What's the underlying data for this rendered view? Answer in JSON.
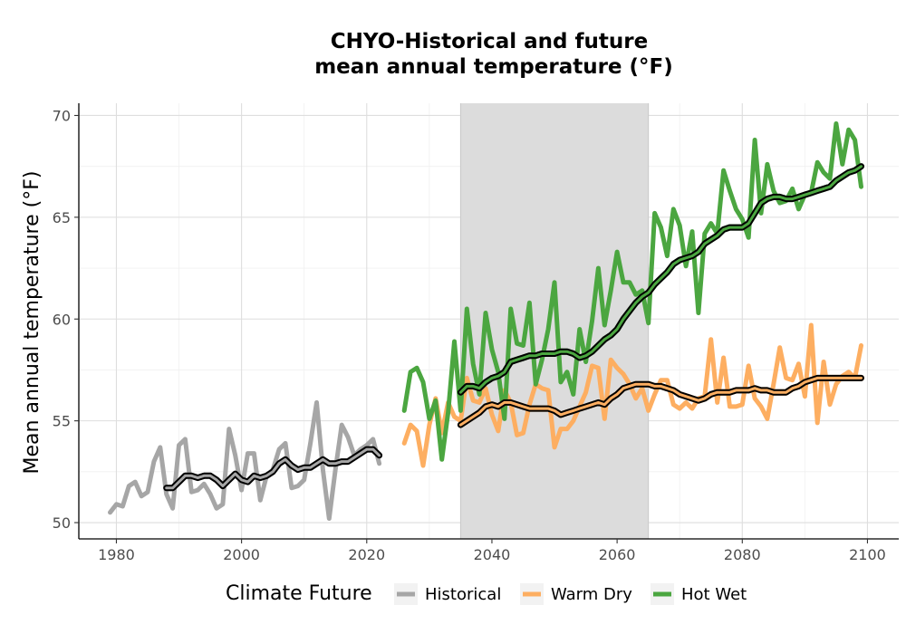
{
  "chart_data": {
    "type": "line",
    "title_lines": [
      "CHYO-Historical and future",
      "mean annual temperature (°F)"
    ],
    "xlabel": "",
    "ylabel": "Mean annual temperature (°F)",
    "xlim": [
      1974,
      2105
    ],
    "ylim": [
      49.2,
      70.6
    ],
    "x_ticks": [
      1980,
      2000,
      2020,
      2040,
      2060,
      2080,
      2100
    ],
    "y_ticks": [
      50,
      55,
      60,
      65,
      70
    ],
    "grid": true,
    "shaded_period": [
      2035,
      2065
    ],
    "shade_color": "#dcdcdc",
    "legend": {
      "title": "Climate Future",
      "position": "bottom",
      "entries": [
        {
          "label": "Historical",
          "color": "#a6a6a6"
        },
        {
          "label": "Warm Dry",
          "color": "#fdae61"
        },
        {
          "label": "Hot Wet",
          "color": "#4ba640"
        }
      ]
    },
    "series": [
      {
        "name": "Historical",
        "color": "#a6a6a6",
        "x": [
          1979,
          1980,
          1981,
          1982,
          1983,
          1984,
          1985,
          1986,
          1987,
          1988,
          1989,
          1990,
          1991,
          1992,
          1993,
          1994,
          1995,
          1996,
          1997,
          1998,
          1999,
          2000,
          2001,
          2002,
          2003,
          2004,
          2005,
          2006,
          2007,
          2008,
          2009,
          2010,
          2011,
          2012,
          2013,
          2014,
          2015,
          2016,
          2017,
          2018,
          2019,
          2020,
          2021,
          2022
        ],
        "values": [
          50.5,
          50.9,
          50.8,
          51.8,
          52.0,
          51.3,
          51.5,
          53.0,
          53.7,
          51.4,
          50.7,
          53.8,
          54.1,
          51.5,
          51.6,
          51.9,
          51.4,
          50.7,
          50.9,
          54.6,
          53.3,
          51.6,
          53.4,
          53.4,
          51.1,
          52.3,
          52.6,
          53.6,
          53.9,
          51.7,
          51.8,
          52.1,
          53.9,
          55.9,
          52.6,
          50.2,
          52.6,
          54.8,
          54.2,
          53.3,
          53.6,
          53.8,
          54.1,
          52.9
        ]
      },
      {
        "name": "Historical smoothed",
        "color": "#000000",
        "x": [
          1988,
          1989,
          1990,
          1991,
          1992,
          1993,
          1994,
          1995,
          1996,
          1997,
          1998,
          1999,
          2000,
          2001,
          2002,
          2003,
          2004,
          2005,
          2006,
          2007,
          2008,
          2009,
          2010,
          2011,
          2012,
          2013,
          2014,
          2015,
          2016,
          2017,
          2018,
          2019,
          2020,
          2021,
          2022
        ],
        "values": [
          51.7,
          51.7,
          52.0,
          52.3,
          52.3,
          52.2,
          52.3,
          52.3,
          52.1,
          51.8,
          52.1,
          52.4,
          52.1,
          52.0,
          52.3,
          52.2,
          52.3,
          52.5,
          52.9,
          53.1,
          52.8,
          52.6,
          52.7,
          52.7,
          52.9,
          53.1,
          52.9,
          52.9,
          53.0,
          53.0,
          53.2,
          53.4,
          53.6,
          53.6,
          53.3
        ]
      },
      {
        "name": "Warm Dry",
        "color": "#fdae61",
        "x": [
          2026,
          2027,
          2028,
          2029,
          2030,
          2031,
          2032,
          2033,
          2034,
          2035,
          2036,
          2037,
          2038,
          2039,
          2040,
          2041,
          2042,
          2043,
          2044,
          2045,
          2046,
          2047,
          2048,
          2049,
          2050,
          2051,
          2052,
          2053,
          2054,
          2055,
          2056,
          2057,
          2058,
          2059,
          2060,
          2061,
          2062,
          2063,
          2064,
          2065,
          2066,
          2067,
          2068,
          2069,
          2070,
          2071,
          2072,
          2073,
          2074,
          2075,
          2076,
          2077,
          2078,
          2079,
          2080,
          2081,
          2082,
          2083,
          2084,
          2085,
          2086,
          2087,
          2088,
          2089,
          2090,
          2091,
          2092,
          2093,
          2094,
          2095,
          2096,
          2097,
          2098,
          2099
        ],
        "values": [
          53.9,
          54.8,
          54.5,
          52.8,
          54.8,
          56.1,
          54.4,
          55.9,
          55.2,
          55.0,
          57.1,
          56.0,
          55.9,
          56.6,
          55.3,
          54.5,
          56.5,
          55.9,
          54.3,
          54.4,
          55.8,
          56.8,
          56.6,
          56.5,
          53.7,
          54.6,
          54.6,
          55.0,
          55.7,
          56.4,
          57.7,
          57.6,
          55.1,
          58.0,
          57.6,
          57.3,
          56.8,
          56.1,
          56.6,
          55.5,
          56.3,
          57.0,
          57.0,
          55.8,
          55.6,
          55.9,
          55.6,
          56.1,
          56.2,
          59.0,
          55.9,
          58.1,
          55.7,
          55.7,
          55.8,
          57.7,
          56.1,
          55.7,
          55.1,
          56.8,
          58.6,
          57.1,
          57.0,
          57.8,
          56.2,
          59.7,
          54.9,
          57.9,
          55.8,
          56.8,
          57.2,
          57.4,
          57.1,
          58.7
        ]
      },
      {
        "name": "Warm Dry smoothed",
        "color": "#000000",
        "x": [
          2035,
          2036,
          2037,
          2038,
          2039,
          2040,
          2041,
          2042,
          2043,
          2044,
          2045,
          2046,
          2047,
          2048,
          2049,
          2050,
          2051,
          2052,
          2053,
          2054,
          2055,
          2056,
          2057,
          2058,
          2059,
          2060,
          2061,
          2062,
          2063,
          2064,
          2065,
          2066,
          2067,
          2068,
          2069,
          2070,
          2071,
          2072,
          2073,
          2074,
          2075,
          2076,
          2077,
          2078,
          2079,
          2080,
          2081,
          2082,
          2083,
          2084,
          2085,
          2086,
          2087,
          2088,
          2089,
          2090,
          2091,
          2092,
          2093,
          2094,
          2095,
          2096,
          2097,
          2098,
          2099
        ],
        "values": [
          54.8,
          55.0,
          55.2,
          55.4,
          55.7,
          55.8,
          55.7,
          55.9,
          55.9,
          55.8,
          55.7,
          55.6,
          55.6,
          55.6,
          55.6,
          55.5,
          55.3,
          55.4,
          55.5,
          55.6,
          55.7,
          55.8,
          55.9,
          55.8,
          56.1,
          56.3,
          56.6,
          56.7,
          56.8,
          56.8,
          56.8,
          56.7,
          56.7,
          56.6,
          56.5,
          56.3,
          56.2,
          56.1,
          56.0,
          56.1,
          56.3,
          56.4,
          56.4,
          56.4,
          56.5,
          56.5,
          56.5,
          56.6,
          56.5,
          56.5,
          56.4,
          56.4,
          56.4,
          56.6,
          56.7,
          56.9,
          57.0,
          57.1,
          57.1,
          57.1,
          57.1,
          57.1,
          57.1,
          57.1,
          57.1
        ]
      },
      {
        "name": "Hot Wet",
        "color": "#4ba640",
        "x": [
          2026,
          2027,
          2028,
          2029,
          2030,
          2031,
          2032,
          2033,
          2034,
          2035,
          2036,
          2037,
          2038,
          2039,
          2040,
          2041,
          2042,
          2043,
          2044,
          2045,
          2046,
          2047,
          2048,
          2049,
          2050,
          2051,
          2052,
          2053,
          2054,
          2055,
          2056,
          2057,
          2058,
          2059,
          2060,
          2061,
          2062,
          2063,
          2064,
          2065,
          2066,
          2067,
          2068,
          2069,
          2070,
          2071,
          2072,
          2073,
          2074,
          2075,
          2076,
          2077,
          2078,
          2079,
          2080,
          2081,
          2082,
          2083,
          2084,
          2085,
          2086,
          2087,
          2088,
          2089,
          2090,
          2091,
          2092,
          2093,
          2094,
          2095,
          2096,
          2097,
          2098,
          2099
        ],
        "values": [
          55.5,
          57.4,
          57.6,
          56.9,
          55.1,
          56.0,
          53.1,
          55.4,
          58.9,
          55.5,
          60.5,
          57.8,
          56.3,
          60.3,
          58.5,
          57.4,
          55.1,
          60.5,
          58.8,
          58.7,
          60.8,
          56.8,
          58.0,
          59.5,
          61.8,
          56.9,
          57.4,
          56.3,
          59.5,
          57.9,
          59.9,
          62.5,
          59.7,
          61.4,
          63.3,
          61.8,
          61.8,
          61.2,
          61.4,
          59.8,
          65.2,
          64.5,
          63.1,
          65.4,
          64.6,
          62.6,
          64.3,
          60.3,
          64.2,
          64.7,
          64.2,
          67.3,
          66.3,
          65.4,
          64.9,
          64.0,
          68.8,
          65.2,
          67.6,
          66.3,
          65.7,
          65.8,
          66.4,
          65.4,
          66.1,
          66.2,
          67.7,
          67.2,
          66.9,
          69.6,
          67.6,
          69.3,
          68.8,
          66.5
        ]
      },
      {
        "name": "Hot Wet smoothed",
        "color": "#000000",
        "x": [
          2035,
          2036,
          2037,
          2038,
          2039,
          2040,
          2041,
          2042,
          2043,
          2044,
          2045,
          2046,
          2047,
          2048,
          2049,
          2050,
          2051,
          2052,
          2053,
          2054,
          2055,
          2056,
          2057,
          2058,
          2059,
          2060,
          2061,
          2062,
          2063,
          2064,
          2065,
          2066,
          2067,
          2068,
          2069,
          2070,
          2071,
          2072,
          2073,
          2074,
          2075,
          2076,
          2077,
          2078,
          2079,
          2080,
          2081,
          2082,
          2083,
          2084,
          2085,
          2086,
          2087,
          2088,
          2089,
          2090,
          2091,
          2092,
          2093,
          2094,
          2095,
          2096,
          2097,
          2098,
          2099
        ],
        "values": [
          56.4,
          56.7,
          56.7,
          56.6,
          56.9,
          57.1,
          57.2,
          57.4,
          57.9,
          58.0,
          58.1,
          58.2,
          58.2,
          58.3,
          58.3,
          58.3,
          58.4,
          58.4,
          58.3,
          58.1,
          58.2,
          58.4,
          58.7,
          59.0,
          59.2,
          59.5,
          60.0,
          60.4,
          60.8,
          61.1,
          61.3,
          61.7,
          62.0,
          62.3,
          62.7,
          62.9,
          63.0,
          63.1,
          63.3,
          63.7,
          63.9,
          64.1,
          64.4,
          64.5,
          64.5,
          64.5,
          64.7,
          65.2,
          65.7,
          65.9,
          66.0,
          66.0,
          65.9,
          65.9,
          66.0,
          66.1,
          66.2,
          66.3,
          66.4,
          66.5,
          66.8,
          67.0,
          67.2,
          67.3,
          67.5
        ]
      }
    ]
  }
}
